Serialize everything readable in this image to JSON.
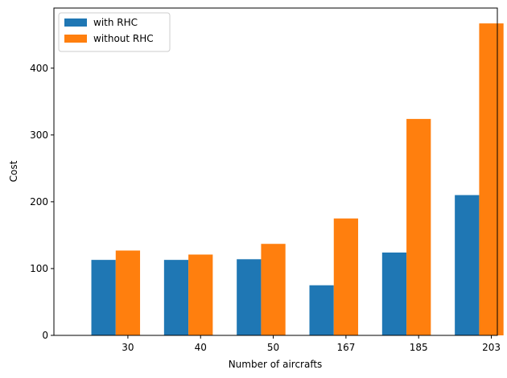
{
  "chart_data": {
    "type": "bar",
    "categories": [
      "30",
      "40",
      "50",
      "167",
      "185",
      "203"
    ],
    "series": [
      {
        "name": "with RHC",
        "color": "#1f77b4",
        "values": [
          113,
          113,
          114,
          75,
          124,
          210
        ]
      },
      {
        "name": "without RHC",
        "color": "#ff7f0e",
        "values": [
          127,
          121,
          137,
          175,
          324,
          467
        ]
      }
    ],
    "xlabel": "Number of aircrafts",
    "ylabel": "Cost",
    "ylim": [
      0,
      490
    ],
    "yticks": [
      0,
      100,
      200,
      300,
      400
    ],
    "grid": false,
    "legend": "top-left"
  }
}
